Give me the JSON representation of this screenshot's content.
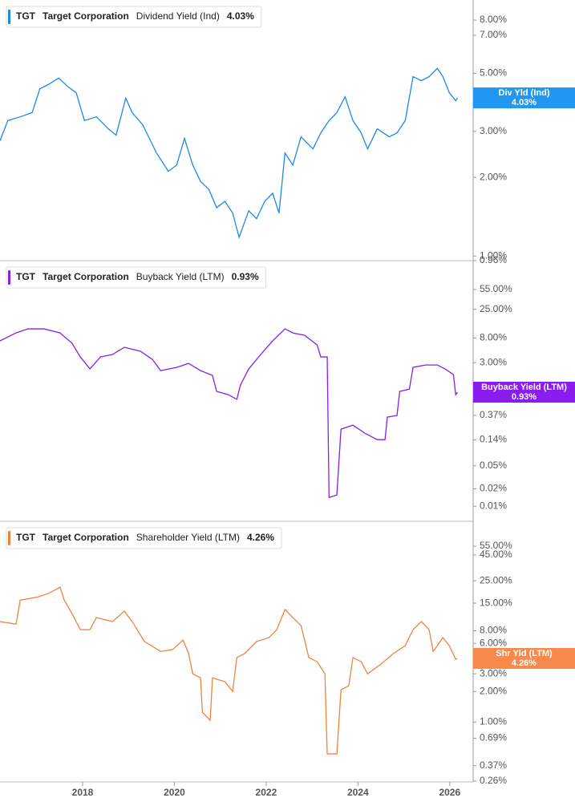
{
  "chart_data": [
    {
      "type": "line",
      "ticker": "TGT",
      "company": "Target Corporation",
      "log_scale": true,
      "grid": false,
      "series": [
        {
          "name": "Dividend Yield (Ind)",
          "short_name": "Div Yld (Ind)",
          "color": "#1e88e5",
          "box_color": "#2196f3",
          "last_value": 4.03,
          "last_value_label": "4.03%",
          "x": [
            2016.2,
            2016.37,
            2016.64,
            2016.9,
            2017.07,
            2017.25,
            2017.48,
            2017.69,
            2017.86,
            2018.04,
            2018.3,
            2018.56,
            2018.73,
            2018.94,
            2019.08,
            2019.31,
            2019.61,
            2019.87,
            2020.05,
            2020.22,
            2020.4,
            2020.57,
            2020.75,
            2020.92,
            2021.1,
            2021.27,
            2021.41,
            2021.62,
            2021.79,
            2021.97,
            2022.14,
            2022.28,
            2022.41,
            2022.58,
            2022.76,
            2023.02,
            2023.19,
            2023.37,
            2023.54,
            2023.72,
            2023.89,
            2024.07,
            2024.21,
            2024.42,
            2024.68,
            2024.85,
            2025.03,
            2025.2,
            2025.38,
            2025.55,
            2025.73,
            2025.85,
            2025.99,
            2026.13,
            2026.17
          ],
          "values": [
            2.76,
            3.3,
            3.41,
            3.54,
            4.37,
            4.53,
            4.8,
            4.43,
            4.22,
            3.3,
            3.41,
            3.07,
            2.9,
            4.02,
            3.54,
            3.18,
            2.48,
            2.11,
            2.23,
            2.82,
            2.23,
            1.93,
            1.8,
            1.53,
            1.62,
            1.46,
            1.18,
            1.49,
            1.39,
            1.62,
            1.74,
            1.46,
            2.48,
            2.23,
            2.86,
            2.57,
            2.96,
            3.3,
            3.54,
            4.07,
            3.3,
            2.96,
            2.57,
            3.07,
            2.86,
            2.96,
            3.3,
            4.86,
            4.69,
            4.86,
            5.23,
            4.86,
            4.22,
            3.93,
            4.03
          ]
        }
      ],
      "xlim": [
        2016.2,
        2026.51
      ],
      "ylim": [
        0.96,
        9.55
      ],
      "yticks": [
        {
          "value": 8,
          "label": "8.00%"
        },
        {
          "value": 7,
          "label": "7.00%"
        },
        {
          "value": 5,
          "label": "5.00%"
        },
        {
          "value": 3,
          "label": "3.00%"
        },
        {
          "value": 2,
          "label": "2.00%"
        },
        {
          "value": 1,
          "label": "1.00%"
        },
        {
          "value": 0.96,
          "label": "0.96%"
        }
      ]
    },
    {
      "type": "line",
      "ticker": "TGT",
      "company": "Target Corporation",
      "log_scale": true,
      "grid": false,
      "series": [
        {
          "name": "Buyback Yield (LTM)",
          "short_name": "Buyback Yield (LTM)",
          "color": "#8a1ee8",
          "box_color": "#8b1cf0",
          "last_value": 0.93,
          "last_value_label": "0.93%",
          "x": [
            2016.2,
            2016.55,
            2016.81,
            2017.16,
            2017.51,
            2017.77,
            2017.95,
            2018.16,
            2018.39,
            2018.65,
            2018.91,
            2019.26,
            2019.52,
            2019.7,
            2020.05,
            2020.31,
            2020.57,
            2020.83,
            2020.92,
            2021.18,
            2021.36,
            2021.44,
            2021.62,
            2021.88,
            2022.14,
            2022.41,
            2022.58,
            2022.84,
            2023.11,
            2023.19,
            2023.33,
            2023.37,
            2023.54,
            2023.63,
            2023.89,
            2024.15,
            2024.42,
            2024.59,
            2024.64,
            2024.85,
            2024.91,
            2025.12,
            2025.2,
            2025.47,
            2025.73,
            2025.9,
            2026.08,
            2026.13,
            2026.17
          ],
          "values": [
            7.14,
            9.8,
            11.5,
            11.5,
            9.8,
            6.49,
            3.77,
            2.34,
            3.77,
            4.15,
            5.53,
            4.72,
            3.43,
            2.19,
            2.49,
            2.92,
            2.19,
            1.81,
            0.96,
            0.84,
            0.7,
            1.24,
            2.34,
            4.15,
            7.14,
            11.5,
            9.8,
            8.9,
            6.08,
            3.77,
            3.77,
            0.0142,
            0.0156,
            0.214,
            0.251,
            0.182,
            0.141,
            0.141,
            0.345,
            0.368,
            0.96,
            1.05,
            2.49,
            2.74,
            2.74,
            2.34,
            1.87,
            0.84,
            0.93
          ]
        }
      ],
      "xlim": [
        2016.2,
        2026.51
      ],
      "ylim": [
        0.0055,
        173
      ],
      "yticks": [
        {
          "value": 55,
          "label": "55.00%"
        },
        {
          "value": 25,
          "label": "25.00%"
        },
        {
          "value": 8,
          "label": "8.00%"
        },
        {
          "value": 3,
          "label": "3.00%"
        },
        {
          "value": 0.37,
          "label": "0.37%"
        },
        {
          "value": 0.14,
          "label": "0.14%"
        },
        {
          "value": 0.05,
          "label": "0.05%"
        },
        {
          "value": 0.02,
          "label": "0.02%"
        },
        {
          "value": 0.01,
          "label": "0.01%"
        }
      ]
    },
    {
      "type": "line",
      "ticker": "TGT",
      "company": "Target Corporation",
      "log_scale": true,
      "grid": false,
      "series": [
        {
          "name": "Shareholder Yield (LTM)",
          "short_name": "Shr Yld (LTM)",
          "color": "#f0823f",
          "box_color": "#f58a4c",
          "last_value": 4.26,
          "last_value_label": "4.26%",
          "x": [
            2016.2,
            2016.55,
            2016.64,
            2016.99,
            2017.25,
            2017.51,
            2017.6,
            2017.77,
            2017.95,
            2018.16,
            2018.3,
            2018.65,
            2018.91,
            2019.08,
            2019.35,
            2019.7,
            2019.96,
            2020.19,
            2020.31,
            2020.4,
            2020.57,
            2020.61,
            2020.78,
            2020.83,
            2021.1,
            2021.27,
            2021.36,
            2021.53,
            2021.79,
            2022.06,
            2022.23,
            2022.41,
            2022.58,
            2022.76,
            2022.93,
            2023.11,
            2023.28,
            2023.33,
            2023.54,
            2023.63,
            2023.8,
            2023.89,
            2024.07,
            2024.21,
            2024.5,
            2024.77,
            2025.03,
            2025.2,
            2025.38,
            2025.55,
            2025.64,
            2025.85,
            2025.99,
            2026.13,
            2026.17
          ],
          "values": [
            9.86,
            9.3,
            16.1,
            17.1,
            18.7,
            21.6,
            16.1,
            11.8,
            8.2,
            8.2,
            10.8,
            9.86,
            12.5,
            9.86,
            6.25,
            5.0,
            5.2,
            6.47,
            4.75,
            3.0,
            2.74,
            1.25,
            1.04,
            2.74,
            2.5,
            2.01,
            4.34,
            4.75,
            6.25,
            6.84,
            8.2,
            13.0,
            10.8,
            9.0,
            4.34,
            3.95,
            3.0,
            0.483,
            0.483,
            2.08,
            2.29,
            4.34,
            3.95,
            3.0,
            3.74,
            4.75,
            5.7,
            8.2,
            9.86,
            8.2,
            5.0,
            6.84,
            5.7,
            4.18,
            4.26
          ]
        }
      ],
      "xlim": [
        2016.2,
        2026.51
      ],
      "ylim": [
        0.255,
        97
      ],
      "xticks": [
        2018,
        2020,
        2022,
        2024,
        2026
      ],
      "yticks": [
        {
          "value": 55,
          "label": "55.00%"
        },
        {
          "value": 45,
          "label": "45.00%"
        },
        {
          "value": 25,
          "label": "25.00%"
        },
        {
          "value": 15,
          "label": "15.00%"
        },
        {
          "value": 8,
          "label": "8.00%"
        },
        {
          "value": 6,
          "label": "6.00%"
        },
        {
          "value": 3,
          "label": "3.00%"
        },
        {
          "value": 2,
          "label": "2.00%"
        },
        {
          "value": 1,
          "label": "1.00%"
        },
        {
          "value": 0.69,
          "label": "0.69%"
        },
        {
          "value": 0.37,
          "label": "0.37%"
        },
        {
          "value": 0.26,
          "label": "0.26%"
        }
      ]
    }
  ]
}
